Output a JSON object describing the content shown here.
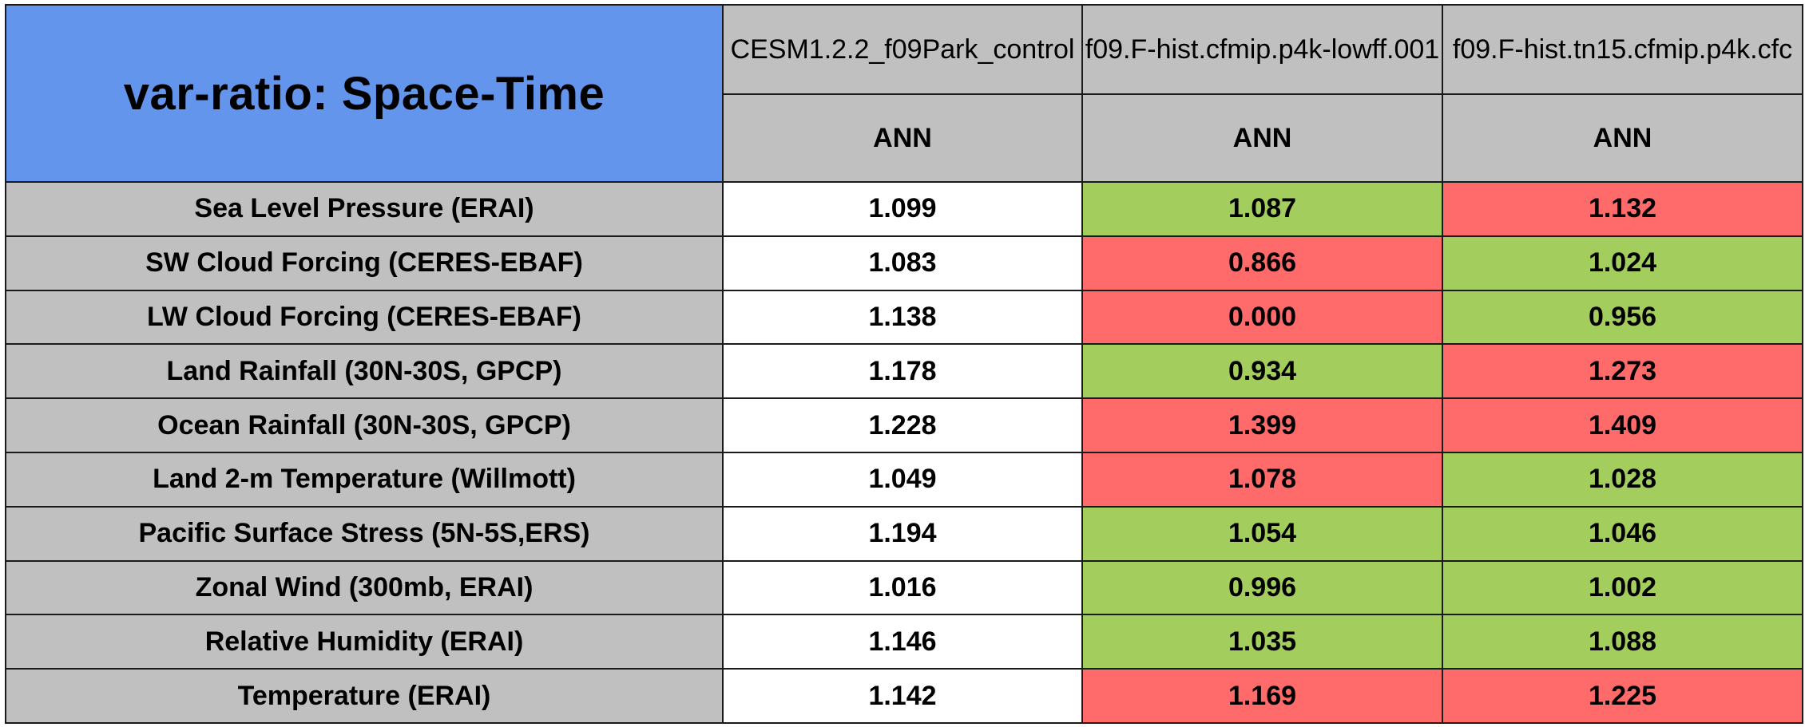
{
  "chart_data": {
    "type": "table",
    "title": "var-ratio: Space-Time",
    "columns": [
      "CESM1.2.2_f09Park_control",
      "f09.F-hist.cfmip.p4k-lowff.001",
      "f09.F-hist.tn15.cfmip.p4k.cfc"
    ],
    "season_labels": [
      "ANN",
      "ANN",
      "ANN"
    ],
    "rows": [
      {
        "label": "Sea Level Pressure (ERAI)",
        "values": [
          "1.099",
          "1.087",
          "1.132"
        ],
        "status": [
          "neutral",
          "better",
          "worse"
        ]
      },
      {
        "label": "SW Cloud Forcing (CERES-EBAF)",
        "values": [
          "1.083",
          "0.866",
          "1.024"
        ],
        "status": [
          "neutral",
          "worse",
          "better"
        ]
      },
      {
        "label": "LW Cloud Forcing (CERES-EBAF)",
        "values": [
          "1.138",
          "0.000",
          "0.956"
        ],
        "status": [
          "neutral",
          "worse",
          "better"
        ]
      },
      {
        "label": "Land Rainfall (30N-30S, GPCP)",
        "values": [
          "1.178",
          "0.934",
          "1.273"
        ],
        "status": [
          "neutral",
          "better",
          "worse"
        ]
      },
      {
        "label": "Ocean Rainfall (30N-30S, GPCP)",
        "values": [
          "1.228",
          "1.399",
          "1.409"
        ],
        "status": [
          "neutral",
          "worse",
          "worse"
        ]
      },
      {
        "label": "Land 2-m Temperature (Willmott)",
        "values": [
          "1.049",
          "1.078",
          "1.028"
        ],
        "status": [
          "neutral",
          "worse",
          "better"
        ]
      },
      {
        "label": "Pacific Surface Stress (5N-5S,ERS)",
        "values": [
          "1.194",
          "1.054",
          "1.046"
        ],
        "status": [
          "neutral",
          "better",
          "better"
        ]
      },
      {
        "label": "Zonal Wind (300mb, ERAI)",
        "values": [
          "1.016",
          "0.996",
          "1.002"
        ],
        "status": [
          "neutral",
          "better",
          "better"
        ]
      },
      {
        "label": "Relative Humidity (ERAI)",
        "values": [
          "1.146",
          "1.035",
          "1.088"
        ],
        "status": [
          "neutral",
          "better",
          "better"
        ]
      },
      {
        "label": "Temperature (ERAI)",
        "values": [
          "1.142",
          "1.169",
          "1.225"
        ],
        "status": [
          "neutral",
          "worse",
          "worse"
        ]
      }
    ]
  },
  "colors": {
    "title_bg": "#6495ed",
    "header_bg": "#c0c0c0",
    "neutral": "#ffffff",
    "better": "#a3cd5c",
    "worse": "#ff6b6b"
  }
}
